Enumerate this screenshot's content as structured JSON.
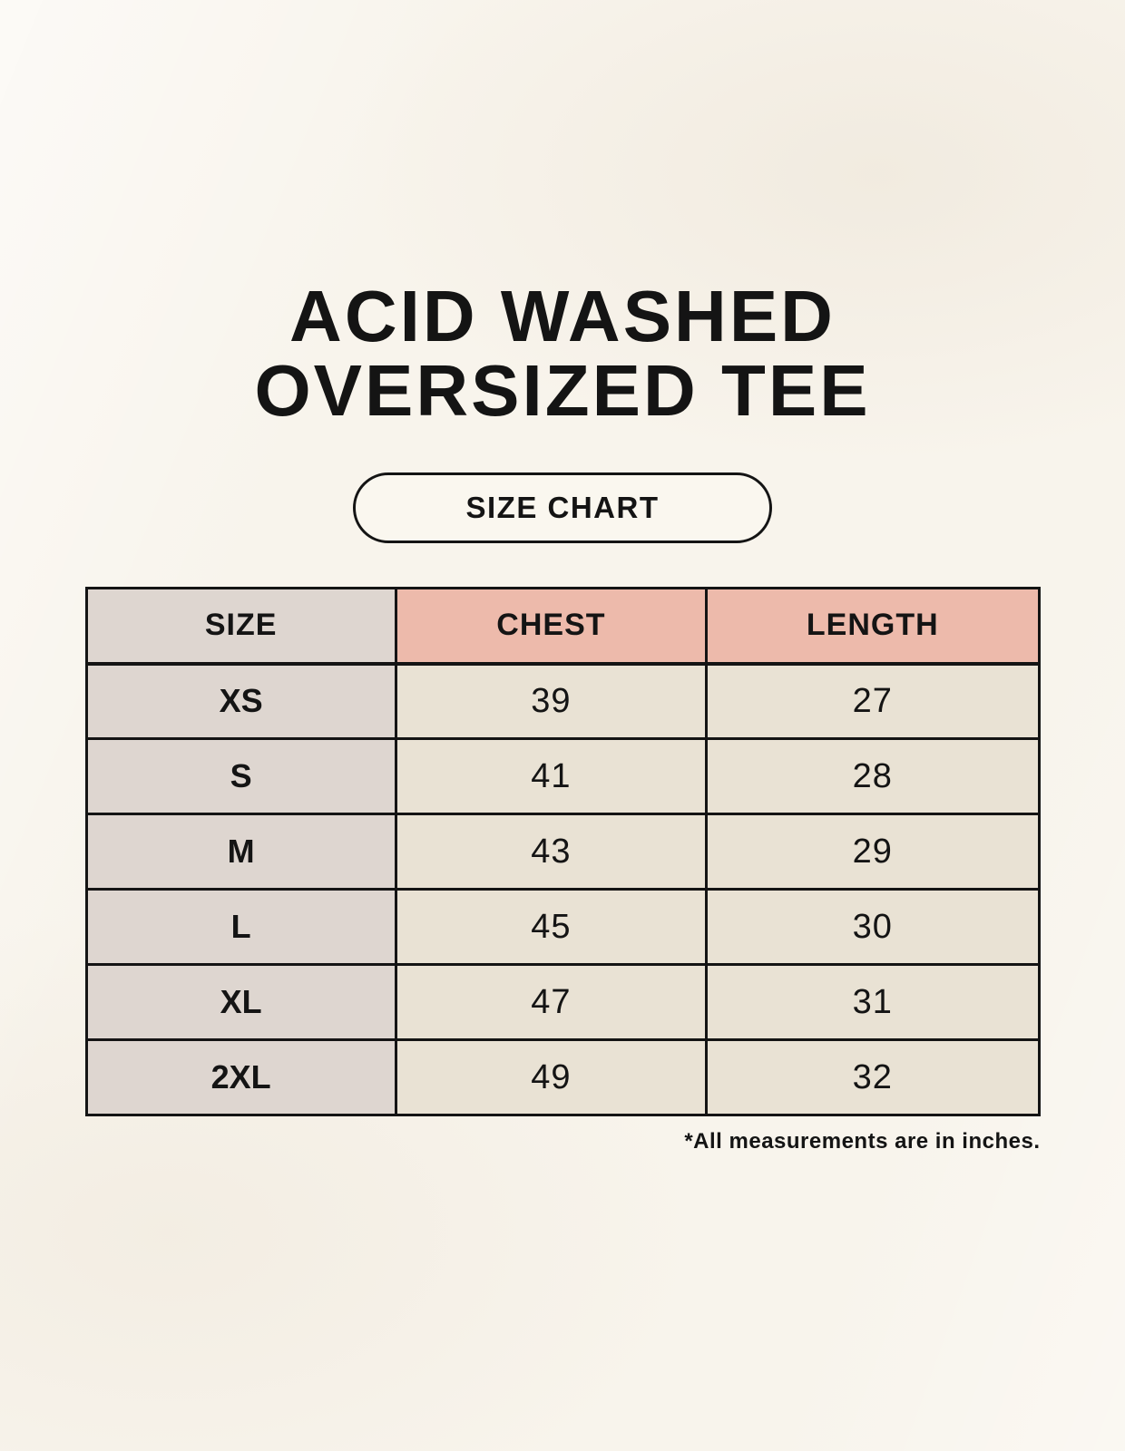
{
  "page": {
    "title_line1": "ACID WASHED",
    "title_line2": "OVERSIZED TEE",
    "badge_label": "SIZE CHART",
    "footnote": "*All measurements are in inches."
  },
  "chart_data": {
    "type": "table",
    "title": "ACID WASHED OVERSIZED TEE",
    "subtitle": "SIZE CHART",
    "columns": [
      "SIZE",
      "CHEST",
      "LENGTH"
    ],
    "rows": [
      [
        "XS",
        "39",
        "27"
      ],
      [
        "S",
        "41",
        "28"
      ],
      [
        "M",
        "43",
        "29"
      ],
      [
        "L",
        "45",
        "30"
      ],
      [
        "XL",
        "47",
        "31"
      ],
      [
        "2XL",
        "49",
        "32"
      ]
    ],
    "units_note": "*All measurements are in inches.",
    "layout": {
      "grid": true,
      "header_accent_columns": [
        "CHEST",
        "LENGTH"
      ],
      "size_column_shaded": true
    }
  },
  "colors": {
    "background": "#f8f4ec",
    "size_column_bg": "#ded6d0",
    "header_accent_bg": "#edbaab",
    "data_cell_bg": "#e9e2d4",
    "border": "#141414",
    "text": "#141414",
    "badge_bg": "#faf7ef"
  }
}
